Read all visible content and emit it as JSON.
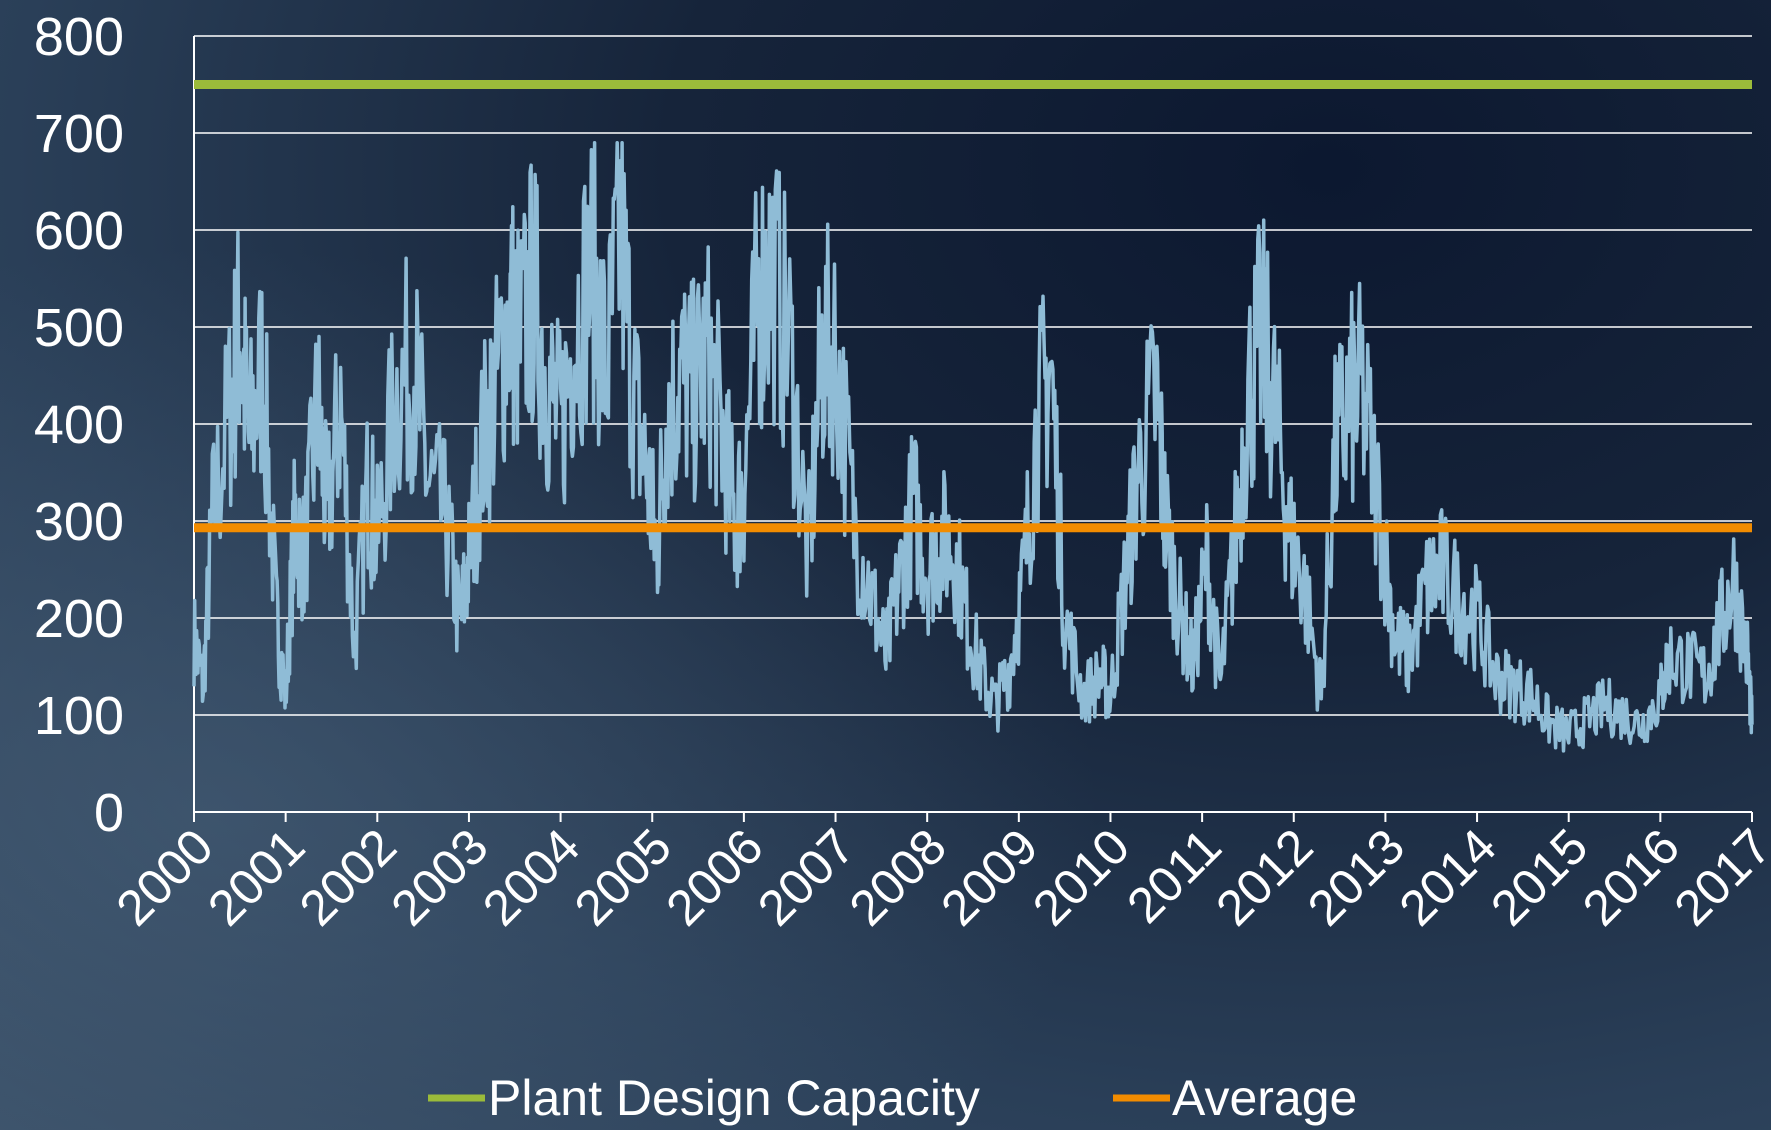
{
  "chart_data": {
    "type": "line",
    "title": "",
    "xlabel": "",
    "ylabel": "",
    "xlim": [
      2000,
      2017
    ],
    "ylim": [
      0,
      800
    ],
    "y_ticks": [
      0,
      100,
      200,
      300,
      400,
      500,
      600,
      700,
      800
    ],
    "x_ticks": [
      "2000",
      "2001",
      "2002",
      "2003",
      "2004",
      "2005",
      "2006",
      "2007",
      "2008",
      "2009",
      "2010",
      "2011",
      "2012",
      "2013",
      "2014",
      "2015",
      "2016",
      "2017"
    ],
    "grid": "horizontal",
    "legend_position": "bottom",
    "series": [
      {
        "role": "measured",
        "color": "#8fbcd6",
        "x": [
          2000.0,
          2000.1,
          2000.2,
          2000.4,
          2000.5,
          2000.6,
          2000.75,
          2000.9,
          2001.0,
          2001.1,
          2001.2,
          2001.35,
          2001.45,
          2001.6,
          2001.75,
          2001.9,
          2002.0,
          2002.2,
          2002.4,
          2002.55,
          2002.75,
          2002.9,
          2003.0,
          2003.15,
          2003.3,
          2003.45,
          2003.55,
          2003.7,
          2003.85,
          2004.0,
          2004.15,
          2004.35,
          2004.5,
          2004.65,
          2004.8,
          2004.95,
          2005.05,
          2005.15,
          2005.3,
          2005.45,
          2005.6,
          2005.75,
          2005.9,
          2006.0,
          2006.15,
          2006.3,
          2006.5,
          2006.7,
          2006.85,
          2007.0,
          2007.2,
          2007.4,
          2007.55,
          2007.7,
          2007.85,
          2008.0,
          2008.15,
          2008.3,
          2008.45,
          2008.6,
          2008.75,
          2008.9,
          2009.05,
          2009.2,
          2009.35,
          2009.5,
          2009.7,
          2009.9,
          2010.0,
          2010.15,
          2010.3,
          2010.5,
          2010.6,
          2010.75,
          2010.9,
          2011.05,
          2011.2,
          2011.35,
          2011.5,
          2011.65,
          2011.8,
          2011.95,
          2012.1,
          2012.3,
          2012.45,
          2012.6,
          2012.75,
          2012.95,
          2013.1,
          2013.25,
          2013.45,
          2013.6,
          2013.8,
          2014.0,
          2014.2,
          2014.4,
          2014.6,
          2014.8,
          2015.0,
          2015.2,
          2015.4,
          2015.6,
          2015.8,
          2016.0,
          2016.1,
          2016.3,
          2016.5,
          2016.65,
          2016.8,
          2016.95,
          2017.0
        ],
        "y": [
          180,
          130,
          300,
          420,
          500,
          380,
          460,
          200,
          120,
          300,
          260,
          420,
          300,
          420,
          170,
          340,
          280,
          430,
          460,
          340,
          300,
          190,
          260,
          380,
          440,
          520,
          480,
          540,
          450,
          390,
          500,
          560,
          450,
          600,
          430,
          340,
          270,
          400,
          450,
          430,
          470,
          400,
          300,
          340,
          530,
          560,
          480,
          260,
          470,
          480,
          300,
          220,
          160,
          240,
          320,
          250,
          280,
          270,
          190,
          140,
          110,
          150,
          240,
          400,
          460,
          200,
          120,
          140,
          120,
          230,
          350,
          430,
          300,
          210,
          150,
          260,
          130,
          270,
          430,
          490,
          410,
          290,
          240,
          120,
          370,
          420,
          430,
          300,
          180,
          160,
          230,
          250,
          220,
          200,
          140,
          130,
          120,
          90,
          80,
          95,
          110,
          100,
          90,
          120,
          160,
          150,
          140,
          190,
          240,
          160,
          90
        ]
      },
      {
        "name": "Plant Design Capacity",
        "color": "#9bbb3a",
        "value": 750
      },
      {
        "name": "Average",
        "color": "#f28c00",
        "value": 293
      }
    ]
  }
}
